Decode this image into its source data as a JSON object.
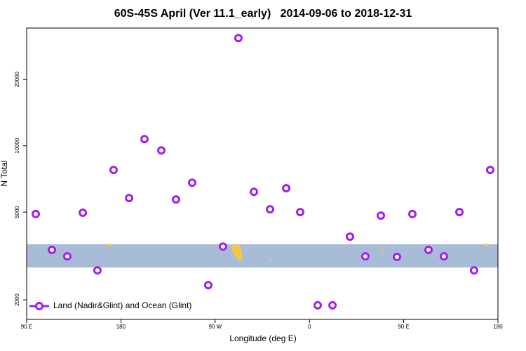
{
  "chart_data": {
    "type": "scatter",
    "title": "60S-45S April (Ver 11.1_early)   2014-09-06 to 2018-12-31",
    "x_label": "Longitude (deg E)",
    "y_label": "N Total",
    "x": [
      98.7,
      114.1,
      128.8,
      143.6,
      157.6,
      173.0,
      187.8,
      202.5,
      218.6,
      232.6,
      248.0,
      263.4,
      277.5,
      292.2,
      307.0,
      322.4,
      337.8,
      351.2,
      367.9,
      382.0,
      398.7,
      413.4,
      428.2,
      443.6,
      458.3,
      473.7,
      488.4,
      503.2,
      517.2,
      532.6
    ],
    "series": [
      {
        "name": "Land (Nadir&Glint) and Ocean (Glint)",
        "color": "#a020f0",
        "values": [
          4900,
          3370,
          3150,
          4970,
          2720,
          7770,
          5790,
          10720,
          9530,
          5710,
          6800,
          2330,
          3490,
          30800,
          6180,
          5150,
          6420,
          5000,
          1890,
          1890,
          3870,
          3150,
          4820,
          3130,
          4900,
          3370,
          3150,
          5000,
          2720,
          7770
        ]
      }
    ],
    "xlim": [
      90,
      540
    ],
    "xticks": [
      {
        "value": 90,
        "label": "90 E"
      },
      180,
      {
        "value": 270,
        "label": "90 W"
      },
      {
        "value": 360,
        "label": "0"
      },
      {
        "value": 450,
        "label": "90 E"
      },
      {
        "value": 540,
        "label": "180"
      }
    ],
    "ylim": [
      1630,
      34200
    ],
    "ylog": true,
    "yticks": [
      2000,
      5000,
      10000,
      20000
    ],
    "legend": "bottom-left"
  }
}
